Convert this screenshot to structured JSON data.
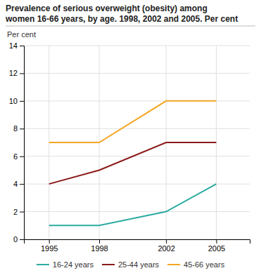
{
  "chart_data": {
    "type": "line",
    "title": "Prevalence of serious overweight (obesity) among",
    "subtitle": "women 16-66 years, by age. 1998, 2002 and 2005. Per cent",
    "y_label": "Per cent",
    "x": [
      1995,
      1998,
      2002,
      2005
    ],
    "series": [
      {
        "name": "16-24 years",
        "color": "#2aaca0",
        "values": [
          1.0,
          1.0,
          2.0,
          4.0
        ]
      },
      {
        "name": "25-44 years",
        "color": "#8b1a1a",
        "values": [
          4.0,
          5.0,
          7.0,
          7.0
        ]
      },
      {
        "name": "45-66 years",
        "color": "#f5a623",
        "values": [
          7.0,
          7.0,
          10.0,
          10.0
        ]
      }
    ],
    "xlim": [
      1993.5,
      2007.0
    ],
    "ylim": [
      0,
      14
    ],
    "xticks": [
      1995,
      1998,
      2002,
      2005
    ],
    "yticks": [
      0,
      2,
      4,
      6,
      8,
      10,
      12,
      14
    ],
    "grid": true,
    "legend": "bottom"
  }
}
